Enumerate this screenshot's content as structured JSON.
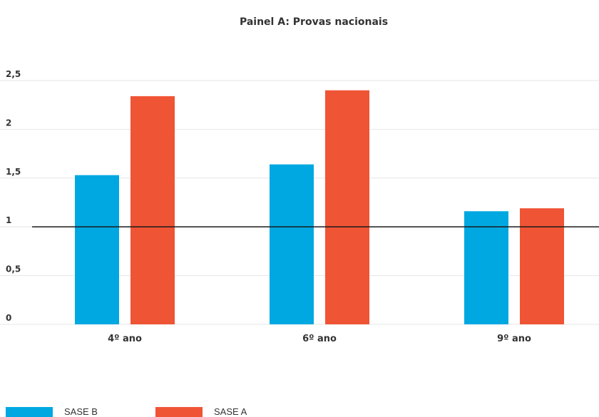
{
  "chart_data": {
    "type": "bar",
    "title": "Painel A: Provas nacionais",
    "xlabel": "",
    "ylabel": "",
    "categories": [
      "4º ano",
      "6º ano",
      "9º ano"
    ],
    "series": [
      {
        "name": "SASE B",
        "color": "#00a8e1",
        "values": [
          1.53,
          1.64,
          1.16
        ]
      },
      {
        "name": "SASE A",
        "color": "#ef5435",
        "values": [
          2.34,
          2.4,
          1.19
        ]
      }
    ],
    "ylim": [
      0,
      2.5
    ],
    "yticks": [
      0,
      0.5,
      1,
      1.5,
      2,
      2.5
    ],
    "ytick_labels": [
      "0",
      "0,5",
      "1",
      "1,5",
      "2",
      "2,5"
    ],
    "reference_line": 1,
    "grid": true,
    "legend_position": "bottom-left"
  }
}
